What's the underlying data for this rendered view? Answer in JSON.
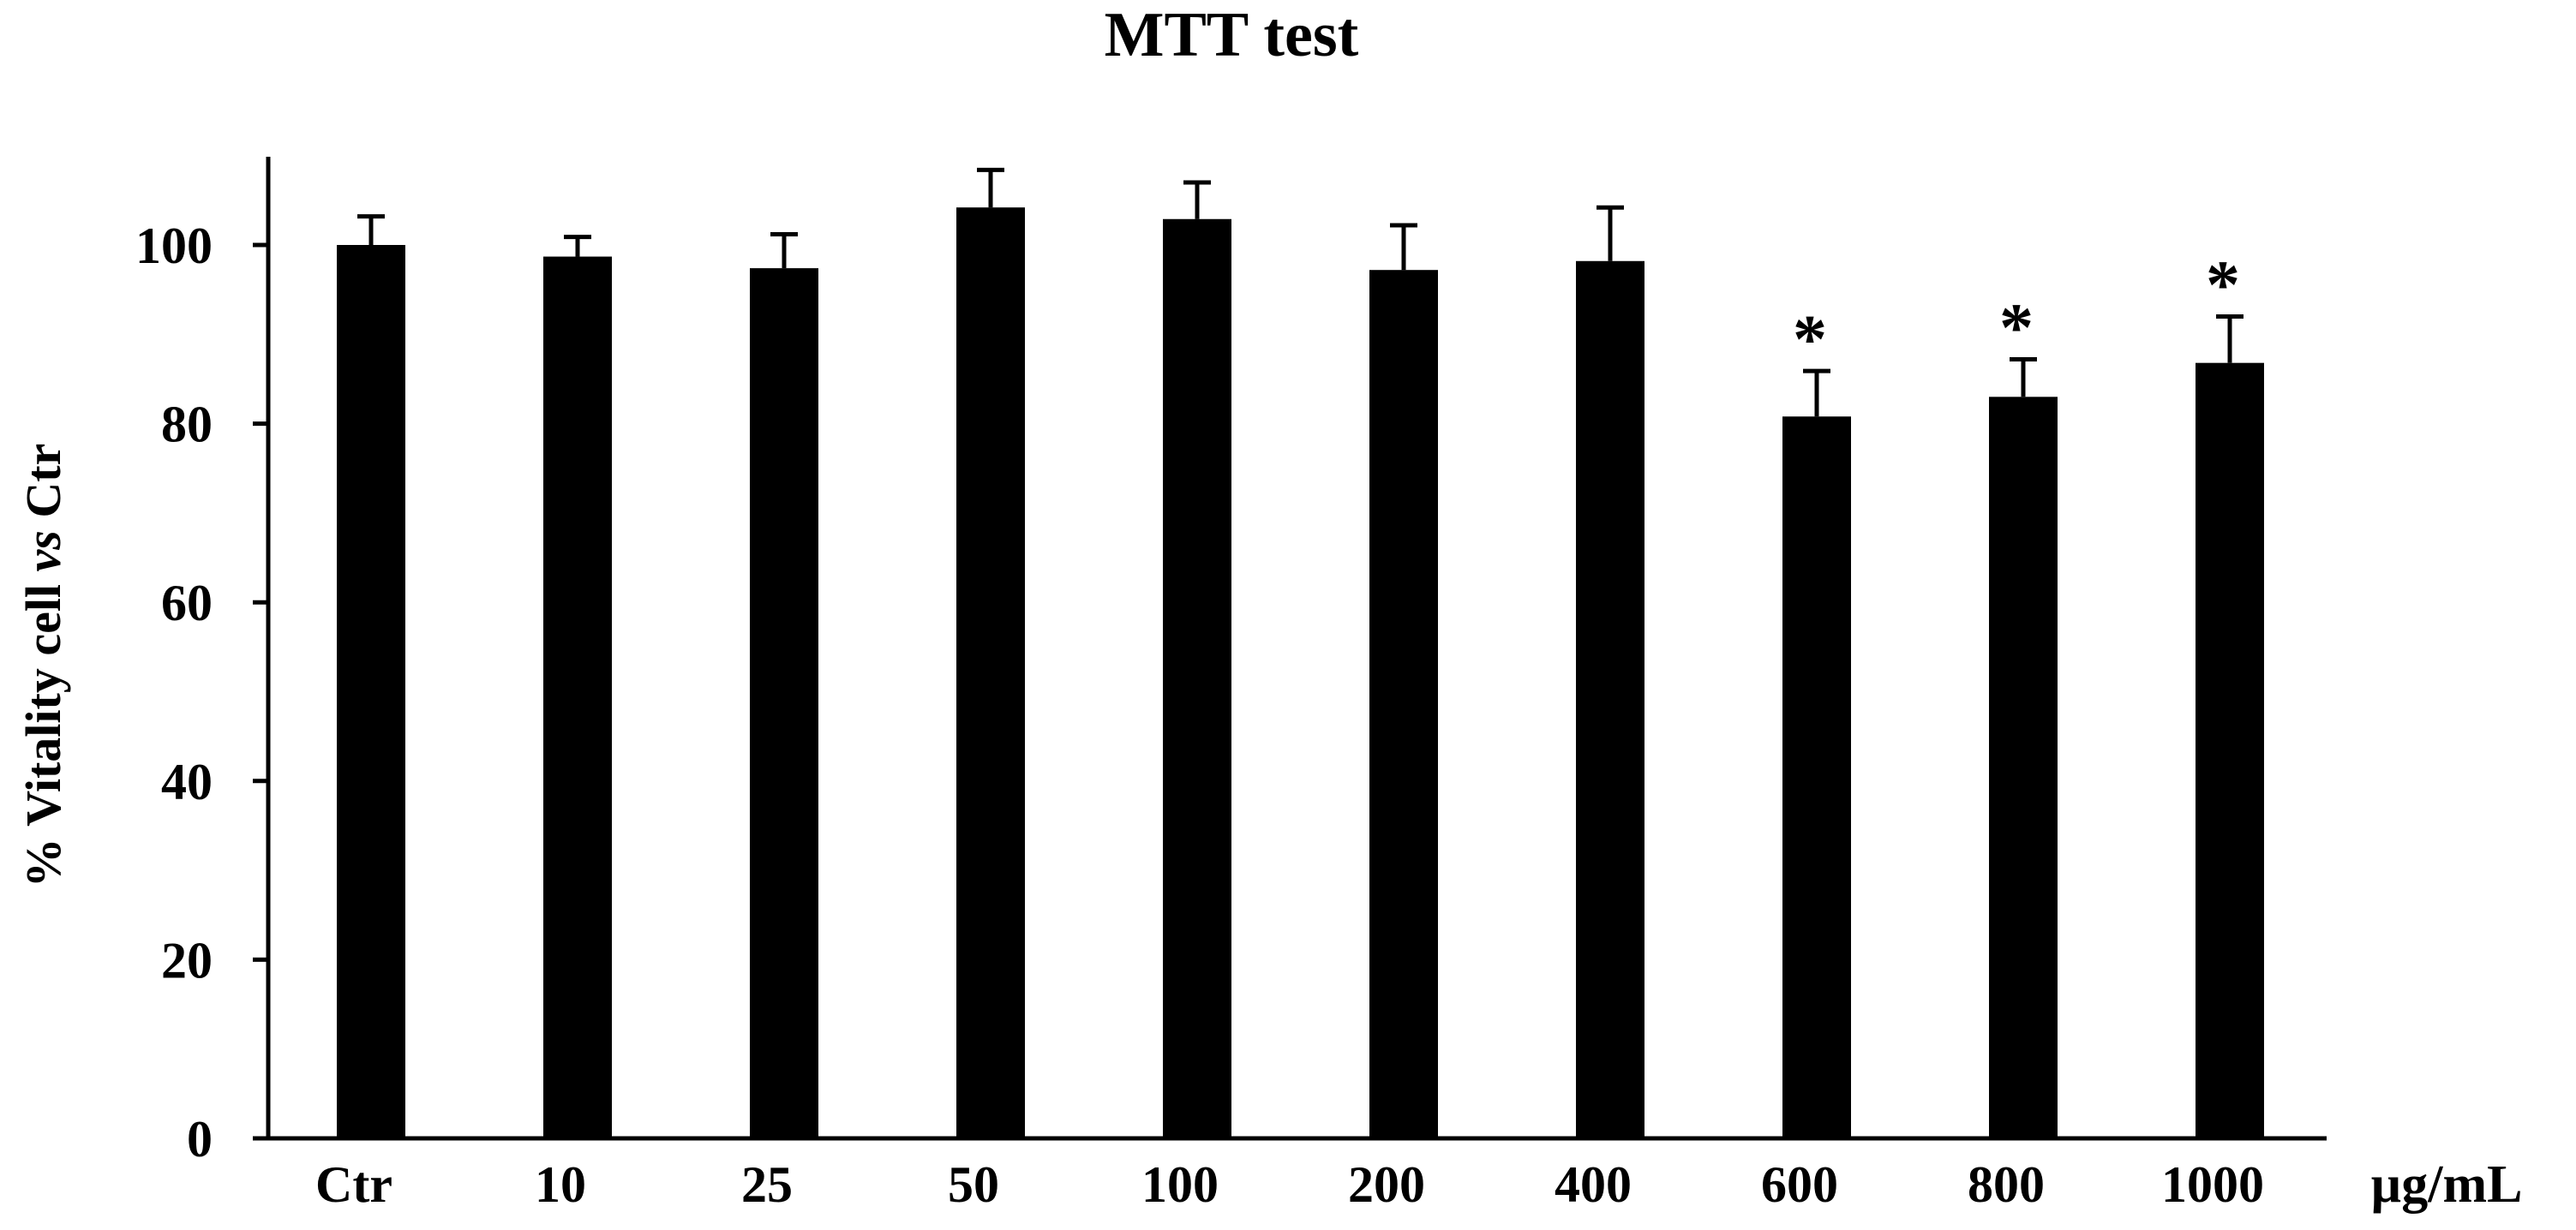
{
  "chart_data": {
    "type": "bar",
    "title": "MTT test",
    "ylabel_prefix": "% Vitality cell ",
    "ylabel_italic": "vs",
    "ylabel_suffix": " Ctr",
    "unit_label": "µg/mL",
    "categories": [
      "Ctr",
      "10",
      "25",
      "50",
      "100",
      "200",
      "400",
      "600",
      "800",
      "1000"
    ],
    "values": [
      100,
      98.7,
      97.4,
      104.2,
      102.9,
      97.2,
      98.2,
      80.8,
      83.0,
      86.8
    ],
    "errors": [
      3.2,
      2.2,
      3.8,
      4.2,
      4.1,
      5.0,
      6.0,
      5.1,
      4.2,
      5.2
    ],
    "significant": [
      false,
      false,
      false,
      false,
      false,
      false,
      false,
      true,
      true,
      true
    ],
    "significance_marker": "*",
    "yticks": [
      0,
      20,
      40,
      60,
      80,
      100
    ],
    "ylim": [
      0,
      110
    ],
    "bar_color": "#000000",
    "grid": false
  }
}
